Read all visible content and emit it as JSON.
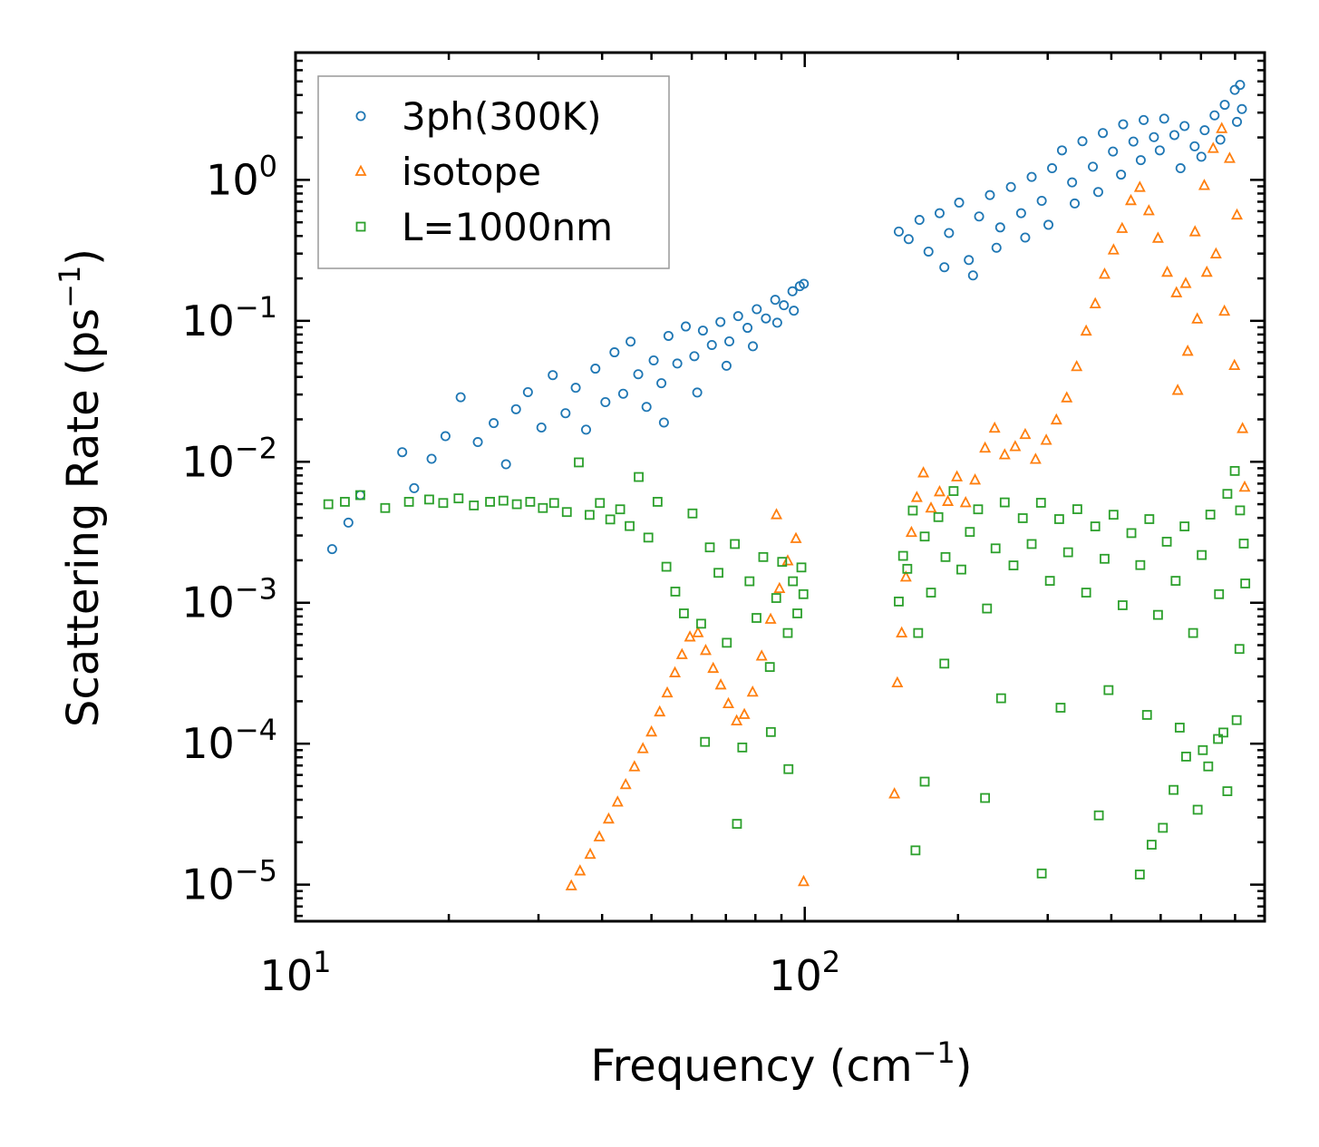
{
  "chart_data": {
    "type": "scatter",
    "title": "",
    "xlabel": "Frequency (cm",
    "xlabel_sup": "−1",
    "xlabel_end": ")",
    "ylabel": "Scattering Rate (ps",
    "ylabel_sup": "−1",
    "ylabel_end": ")",
    "x_scale": "log",
    "y_scale": "log",
    "xlim": [
      10,
      800
    ],
    "ylim": [
      5.5e-06,
      8
    ],
    "x_ticks": [
      {
        "value": 10,
        "base": "10",
        "exp": "1"
      },
      {
        "value": 100,
        "base": "10",
        "exp": "2"
      }
    ],
    "y_ticks": [
      {
        "value": 1,
        "base": "10",
        "exp": "0"
      },
      {
        "value": 0.1,
        "base": "10",
        "exp": "−1"
      },
      {
        "value": 0.01,
        "base": "10",
        "exp": "−2"
      },
      {
        "value": 0.001,
        "base": "10",
        "exp": "−3"
      },
      {
        "value": 0.0001,
        "base": "10",
        "exp": "−4"
      },
      {
        "value": 1e-05,
        "base": "10",
        "exp": "−5"
      }
    ],
    "legend_position": "top-left",
    "series": [
      {
        "name": "3ph(300K)",
        "marker": "circle",
        "color": "#1f77b4",
        "points": [
          [
            11.8,
            0.0024
          ],
          [
            12.7,
            0.0037
          ],
          [
            13.4,
            0.0058
          ],
          [
            16.2,
            0.0117
          ],
          [
            17.1,
            0.0065
          ],
          [
            18.5,
            0.0105
          ],
          [
            19.7,
            0.0152
          ],
          [
            21.1,
            0.0287
          ],
          [
            22.8,
            0.0138
          ],
          [
            24.5,
            0.0188
          ],
          [
            25.9,
            0.0096
          ],
          [
            27.1,
            0.0236
          ],
          [
            28.6,
            0.0312
          ],
          [
            30.4,
            0.0175
          ],
          [
            32.0,
            0.0412
          ],
          [
            33.9,
            0.0221
          ],
          [
            35.5,
            0.0335
          ],
          [
            37.2,
            0.0169
          ],
          [
            38.8,
            0.0458
          ],
          [
            40.6,
            0.0265
          ],
          [
            42.3,
            0.0598
          ],
          [
            44.0,
            0.0304
          ],
          [
            45.5,
            0.0712
          ],
          [
            47.1,
            0.0418
          ],
          [
            48.9,
            0.0245
          ],
          [
            50.5,
            0.0524
          ],
          [
            52.3,
            0.0361
          ],
          [
            54.0,
            0.0782
          ],
          [
            56.2,
            0.0498
          ],
          [
            58.4,
            0.0912
          ],
          [
            60.7,
            0.0561
          ],
          [
            63.1,
            0.0853
          ],
          [
            65.7,
            0.0674
          ],
          [
            68.3,
            0.0982
          ],
          [
            71.1,
            0.0715
          ],
          [
            74.0,
            0.108
          ],
          [
            77.2,
            0.0892
          ],
          [
            80.5,
            0.121
          ],
          [
            83.9,
            0.104
          ],
          [
            87.5,
            0.141
          ],
          [
            91.0,
            0.129
          ],
          [
            94.6,
            0.162
          ],
          [
            97.8,
            0.176
          ],
          [
            99.6,
            0.183
          ],
          [
            95.2,
            0.118
          ],
          [
            88.3,
            0.097
          ],
          [
            79.1,
            0.066
          ],
          [
            70.2,
            0.048
          ],
          [
            61.5,
            0.031
          ],
          [
            52.9,
            0.019
          ],
          [
            153,
            0.43
          ],
          [
            160,
            0.38
          ],
          [
            168,
            0.52
          ],
          [
            175,
            0.31
          ],
          [
            184,
            0.58
          ],
          [
            192,
            0.42
          ],
          [
            201,
            0.69
          ],
          [
            210,
            0.27
          ],
          [
            220,
            0.55
          ],
          [
            231,
            0.78
          ],
          [
            242,
            0.46
          ],
          [
            254,
            0.89
          ],
          [
            266,
            0.58
          ],
          [
            279,
            1.05
          ],
          [
            292,
            0.71
          ],
          [
            306,
            1.21
          ],
          [
            320,
            1.62
          ],
          [
            335,
            0.96
          ],
          [
            351,
            1.88
          ],
          [
            368,
            1.24
          ],
          [
            385,
            2.15
          ],
          [
            403,
            1.59
          ],
          [
            422,
            2.48
          ],
          [
            442,
            1.87
          ],
          [
            463,
            2.66
          ],
          [
            485,
            2.01
          ],
          [
            508,
            2.72
          ],
          [
            532,
            2.08
          ],
          [
            557,
            2.41
          ],
          [
            583,
            1.73
          ],
          [
            610,
            2.25
          ],
          [
            638,
            2.87
          ],
          [
            668,
            3.41
          ],
          [
            699,
            4.35
          ],
          [
            722,
            3.18
          ],
          [
            716,
            4.72
          ],
          [
            188,
            0.24
          ],
          [
            214,
            0.21
          ],
          [
            238,
            0.33
          ],
          [
            271,
            0.39
          ],
          [
            301,
            0.48
          ],
          [
            339,
            0.68
          ],
          [
            377,
            0.82
          ],
          [
            418,
            1.09
          ],
          [
            457,
            1.38
          ],
          [
            498,
            1.62
          ],
          [
            547,
            1.21
          ],
          [
            601,
            1.46
          ],
          [
            655,
            1.93
          ],
          [
            706,
            2.58
          ]
        ]
      },
      {
        "name": "isotope",
        "marker": "triangle",
        "color": "#ff7f0e",
        "points": [
          [
            34.8,
            9.8e-06
          ],
          [
            36.2,
            1.25e-05
          ],
          [
            37.9,
            1.64e-05
          ],
          [
            39.5,
            2.18e-05
          ],
          [
            41.2,
            2.92e-05
          ],
          [
            42.9,
            3.85e-05
          ],
          [
            44.5,
            5.12e-05
          ],
          [
            46.3,
            6.85e-05
          ],
          [
            48.1,
            9.21e-05
          ],
          [
            50.0,
            0.000121
          ],
          [
            51.9,
            0.000168
          ],
          [
            53.7,
            0.000229
          ],
          [
            55.6,
            0.000318
          ],
          [
            57.4,
            0.000428
          ],
          [
            59.5,
            0.000571
          ],
          [
            61.7,
            0.000612
          ],
          [
            63.9,
            0.000458
          ],
          [
            66.1,
            0.000342
          ],
          [
            68.4,
            0.000261
          ],
          [
            70.8,
            0.000192
          ],
          [
            73.5,
            0.000145
          ],
          [
            76.1,
            0.000161
          ],
          [
            79.0,
            0.000232
          ],
          [
            82.3,
            0.000418
          ],
          [
            85.7,
            0.000763
          ],
          [
            89.2,
            0.00126
          ],
          [
            92.6,
            0.00198
          ],
          [
            96.1,
            0.00285
          ],
          [
            99.5,
            1.05e-05
          ],
          [
            88.0,
            0.00421
          ],
          [
            150,
            4.4e-05
          ],
          [
            152,
            0.00027
          ],
          [
            155,
            0.00061
          ],
          [
            158,
            0.00152
          ],
          [
            162,
            0.00315
          ],
          [
            166,
            0.00558
          ],
          [
            171,
            0.00834
          ],
          [
            177,
            0.00469
          ],
          [
            184,
            0.00612
          ],
          [
            191,
            0.00523
          ],
          [
            199,
            0.00781
          ],
          [
            207,
            0.00512
          ],
          [
            216,
            0.00742
          ],
          [
            226,
            0.0125
          ],
          [
            236,
            0.0173
          ],
          [
            247,
            0.0112
          ],
          [
            259,
            0.0128
          ],
          [
            271,
            0.0156
          ],
          [
            284,
            0.0104
          ],
          [
            298,
            0.0142
          ],
          [
            312,
            0.0198
          ],
          [
            327,
            0.0284
          ],
          [
            342,
            0.0473
          ],
          [
            357,
            0.0845
          ],
          [
            372,
            0.132
          ],
          [
            388,
            0.214
          ],
          [
            404,
            0.318
          ],
          [
            420,
            0.452
          ],
          [
            437,
            0.712
          ],
          [
            455,
            0.884
          ],
          [
            474,
            0.603
          ],
          [
            494,
            0.385
          ],
          [
            515,
            0.221
          ],
          [
            537,
            0.158
          ],
          [
            560,
            0.184
          ],
          [
            584,
            0.428
          ],
          [
            609,
            0.912
          ],
          [
            634,
            1.67
          ],
          [
            659,
            2.31
          ],
          [
            683,
            1.42
          ],
          [
            706,
            0.563
          ],
          [
            724,
            0.0172
          ],
          [
            731,
            0.0066
          ],
          [
            698,
            0.0482
          ],
          [
            667,
            0.117
          ],
          [
            642,
            0.298
          ],
          [
            616,
            0.221
          ],
          [
            590,
            0.103
          ],
          [
            565,
            0.0608
          ],
          [
            540,
            0.0321
          ]
        ]
      },
      {
        "name": "L=1000nm",
        "marker": "square",
        "color": "#2ca02c",
        "points": [
          [
            11.6,
            0.005
          ],
          [
            12.5,
            0.0052
          ],
          [
            13.4,
            0.0058
          ],
          [
            15.0,
            0.0047
          ],
          [
            16.7,
            0.0052
          ],
          [
            18.3,
            0.0054
          ],
          [
            19.5,
            0.0051
          ],
          [
            20.9,
            0.0055
          ],
          [
            22.4,
            0.0049
          ],
          [
            24.1,
            0.0052
          ],
          [
            25.6,
            0.0053
          ],
          [
            27.2,
            0.005
          ],
          [
            28.9,
            0.0052
          ],
          [
            30.6,
            0.0047
          ],
          [
            32.2,
            0.0051
          ],
          [
            34.1,
            0.0044
          ],
          [
            36.0,
            0.0099
          ],
          [
            37.8,
            0.0042
          ],
          [
            39.6,
            0.0051
          ],
          [
            41.5,
            0.0039
          ],
          [
            43.4,
            0.0046
          ],
          [
            45.3,
            0.0035
          ],
          [
            47.2,
            0.0078
          ],
          [
            49.3,
            0.0029
          ],
          [
            51.4,
            0.0052
          ],
          [
            53.5,
            0.0018
          ],
          [
            55.7,
            0.0012
          ],
          [
            57.9,
            0.00084
          ],
          [
            60.2,
            0.0043
          ],
          [
            62.6,
            0.00071
          ],
          [
            65.1,
            0.00247
          ],
          [
            67.7,
            0.00163
          ],
          [
            70.3,
            0.00052
          ],
          [
            72.9,
            0.00261
          ],
          [
            75.4,
            9.4e-05
          ],
          [
            77.9,
            0.00142
          ],
          [
            80.4,
            0.00078
          ],
          [
            82.9,
            0.00211
          ],
          [
            85.4,
            0.00035
          ],
          [
            87.9,
            0.00108
          ],
          [
            90.3,
            0.00195
          ],
          [
            92.6,
            0.00061
          ],
          [
            94.8,
            0.00142
          ],
          [
            96.7,
            0.00084
          ],
          [
            98.5,
            0.00178
          ],
          [
            99.4,
            0.00115
          ],
          [
            73.6,
            2.7e-05
          ],
          [
            92.9,
            6.6e-05
          ],
          [
            63.7,
            0.000103
          ],
          [
            85.8,
            0.000121
          ],
          [
            153,
            0.00102
          ],
          [
            156,
            0.00215
          ],
          [
            159,
            0.00174
          ],
          [
            163,
            0.00451
          ],
          [
            167,
            0.00061
          ],
          [
            172,
            0.00295
          ],
          [
            177,
            0.00118
          ],
          [
            183,
            0.00405
          ],
          [
            189,
            0.00211
          ],
          [
            196,
            0.0062
          ],
          [
            203,
            0.00172
          ],
          [
            211,
            0.00318
          ],
          [
            219,
            0.0046
          ],
          [
            228,
            0.00091
          ],
          [
            237,
            0.00243
          ],
          [
            247,
            0.00515
          ],
          [
            257,
            0.00184
          ],
          [
            268,
            0.00398
          ],
          [
            279,
            0.00261
          ],
          [
            291,
            0.00512
          ],
          [
            303,
            0.00143
          ],
          [
            316,
            0.00392
          ],
          [
            329,
            0.00228
          ],
          [
            343,
            0.00461
          ],
          [
            357,
            0.00118
          ],
          [
            372,
            0.00348
          ],
          [
            388,
            0.00205
          ],
          [
            404,
            0.00421
          ],
          [
            421,
            0.00096
          ],
          [
            438,
            0.00312
          ],
          [
            456,
            0.00185
          ],
          [
            475,
            0.00392
          ],
          [
            494,
            0.00082
          ],
          [
            514,
            0.00271
          ],
          [
            535,
            0.00143
          ],
          [
            557,
            0.00348
          ],
          [
            579,
            0.00061
          ],
          [
            602,
            0.00218
          ],
          [
            626,
            0.00422
          ],
          [
            651,
            0.00115
          ],
          [
            676,
            0.00592
          ],
          [
            699,
            0.00861
          ],
          [
            716,
            0.00452
          ],
          [
            728,
            0.00263
          ],
          [
            733,
            0.00137
          ],
          [
            165,
            1.75e-05
          ],
          [
            172,
            5.38e-05
          ],
          [
            226,
            4.12e-05
          ],
          [
            292,
            1.2e-05
          ],
          [
            378,
            3.1e-05
          ],
          [
            455,
            1.18e-05
          ],
          [
            480,
            1.92e-05
          ],
          [
            505,
            2.53e-05
          ],
          [
            530,
            4.7e-05
          ],
          [
            561,
            8.1e-05
          ],
          [
            591,
            3.4e-05
          ],
          [
            620,
            6.9e-05
          ],
          [
            648,
            0.000108
          ],
          [
            676,
            4.6e-05
          ],
          [
            705,
            0.000147
          ],
          [
            188,
            0.00037
          ],
          [
            243,
            0.00021
          ],
          [
            318,
            0.00018
          ],
          [
            395,
            0.00024
          ],
          [
            470,
            0.00016
          ],
          [
            545,
            0.00013
          ],
          [
            605,
            9e-05
          ],
          [
            664,
            0.00012
          ],
          [
            714,
            0.00047
          ]
        ]
      }
    ]
  }
}
